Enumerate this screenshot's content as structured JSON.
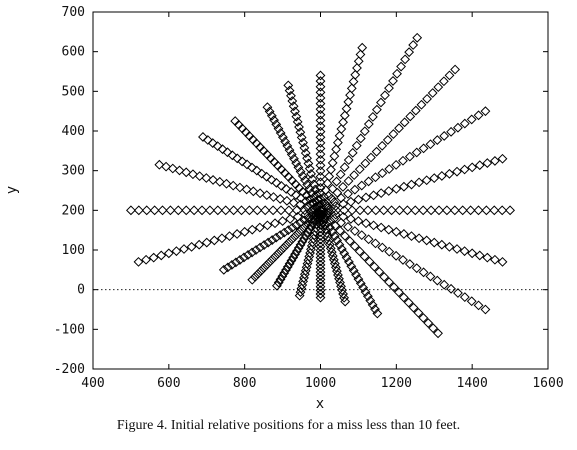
{
  "chart_data": {
    "type": "scatter",
    "xlabel": "x",
    "ylabel": "y",
    "xlim": [
      400,
      1600
    ],
    "ylim": [
      -200,
      700
    ],
    "x_ticks": [
      400,
      600,
      800,
      1000,
      1200,
      1400,
      1600
    ],
    "y_ticks": [
      -200,
      -100,
      0,
      100,
      200,
      300,
      400,
      500,
      600,
      700
    ],
    "marker": "diamond",
    "reference_line": {
      "y": 0,
      "style": "dotted"
    },
    "center": [
      1000,
      200
    ],
    "ray_endpoints": [
      [
        1500,
        200
      ],
      [
        1480,
        330
      ],
      [
        1435,
        450
      ],
      [
        1355,
        555
      ],
      [
        1255,
        635
      ],
      [
        1110,
        610
      ],
      [
        1000,
        540
      ],
      [
        915,
        515
      ],
      [
        860,
        460
      ],
      [
        775,
        425
      ],
      [
        690,
        385
      ],
      [
        575,
        315
      ],
      [
        500,
        200
      ],
      [
        520,
        70
      ],
      [
        745,
        50
      ],
      [
        820,
        25
      ],
      [
        885,
        10
      ],
      [
        945,
        -15
      ],
      [
        1000,
        -20
      ],
      [
        1065,
        -30
      ],
      [
        1150,
        -60
      ],
      [
        1310,
        -110
      ],
      [
        1435,
        -50
      ],
      [
        1480,
        70
      ]
    ],
    "points_per_ray": 25
  },
  "caption": "Figure 4.  Initial relative positions for a miss less than 10 feet."
}
